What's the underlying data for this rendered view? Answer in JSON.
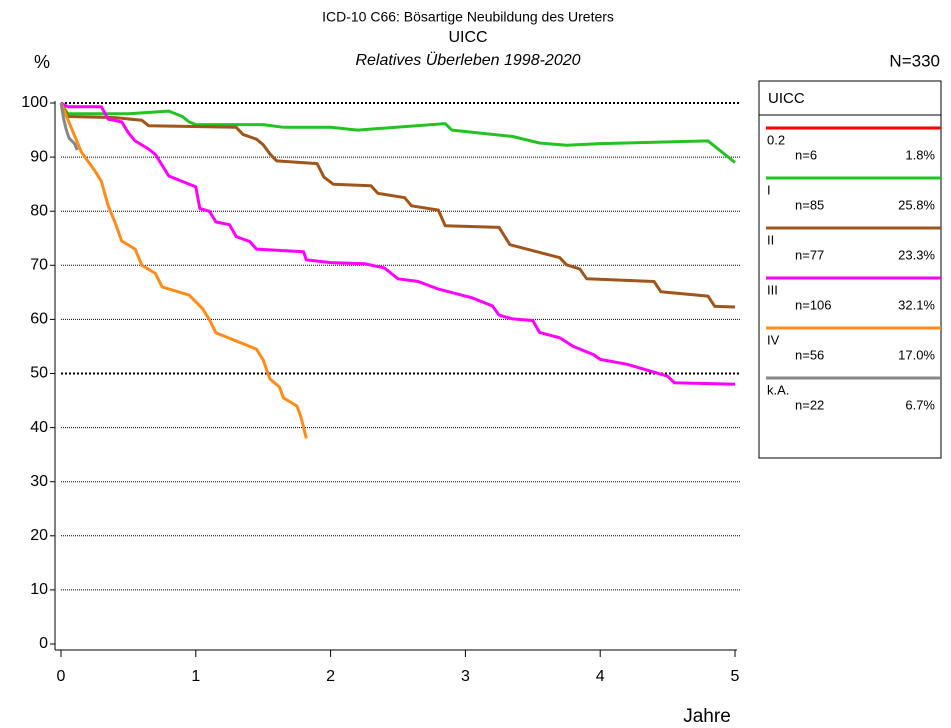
{
  "chart_data": {
    "type": "line",
    "title": "ICD-10 C66: Bösartige Neubildung des Ureters",
    "subtitle": "UICC",
    "caption": "Relatives Überleben 1998-2020",
    "total_label": "N=330",
    "ylabel": "%",
    "xlabel": "Jahre",
    "legend_title": "UICC",
    "xlim": [
      0,
      5
    ],
    "xticks": [
      0,
      1,
      2,
      3,
      4,
      5
    ],
    "ylim": [
      0,
      100
    ],
    "yticks": [
      0,
      10,
      20,
      30,
      40,
      50,
      60,
      70,
      80,
      90,
      100
    ],
    "grid": true,
    "legend_position": "right",
    "series": [
      {
        "name": "0.2",
        "color": "#ff0000",
        "n_label": "n=6",
        "share_label": "1.8%",
        "x": [],
        "values": []
      },
      {
        "name": "I",
        "color": "#22c322",
        "n_label": "n=85",
        "share_label": "25.8%",
        "x": [
          0,
          0.05,
          0.5,
          0.8,
          0.9,
          0.95,
          1.0,
          1.5,
          1.65,
          2.0,
          2.2,
          2.85,
          2.9,
          3.35,
          3.55,
          3.75,
          4.0,
          4.8,
          5.0
        ],
        "values": [
          100,
          98,
          98,
          98.5,
          97.5,
          96.5,
          96,
          96,
          95.5,
          95.5,
          95,
          96.2,
          95,
          93.8,
          92.6,
          92.2,
          92.5,
          93,
          89
        ]
      },
      {
        "name": "II",
        "color": "#a0561a",
        "n_label": "n=77",
        "share_label": "23.3%",
        "x": [
          0,
          0.05,
          0.4,
          0.6,
          0.65,
          1.3,
          1.35,
          1.45,
          1.5,
          1.55,
          1.6,
          1.9,
          1.95,
          2.02,
          2.3,
          2.35,
          2.55,
          2.6,
          2.8,
          2.85,
          3.25,
          3.33,
          3.7,
          3.75,
          3.85,
          3.9,
          4.4,
          4.45,
          4.8,
          4.85,
          5.0
        ],
        "values": [
          100,
          97.5,
          97.3,
          96.8,
          95.8,
          95.5,
          94.2,
          93.3,
          92.3,
          90.6,
          89.3,
          88.8,
          86.3,
          85,
          84.7,
          83.3,
          82.5,
          81,
          80.2,
          77.3,
          77,
          73.8,
          71.4,
          70.1,
          69.3,
          67.5,
          67,
          65.1,
          64.3,
          62.4,
          62.3
        ]
      },
      {
        "name": "III",
        "color": "#ff00ff",
        "n_label": "n=106",
        "share_label": "32.1%",
        "x": [
          0,
          0.05,
          0.3,
          0.35,
          0.45,
          0.5,
          0.55,
          0.65,
          0.7,
          0.8,
          1.0,
          1.03,
          1.1,
          1.15,
          1.25,
          1.3,
          1.4,
          1.45,
          1.8,
          1.82,
          2.0,
          2.25,
          2.4,
          2.5,
          2.65,
          2.8,
          3.05,
          3.2,
          3.25,
          3.35,
          3.5,
          3.55,
          3.7,
          3.8,
          3.95,
          4.0,
          4.2,
          4.5,
          4.55,
          5.0
        ],
        "values": [
          100,
          99.3,
          99.3,
          97,
          96.5,
          94.5,
          93,
          91.5,
          90.5,
          86.5,
          84.5,
          80.5,
          80,
          78,
          77.5,
          75.3,
          74.4,
          73,
          72.5,
          71,
          70.5,
          70.3,
          69.5,
          67.5,
          67,
          65.6,
          64,
          62.5,
          60.8,
          60.1,
          59.8,
          57.6,
          56.6,
          55,
          53.5,
          52.6,
          51.7,
          49.5,
          48.3,
          48
        ]
      },
      {
        "name": "IV",
        "color": "#ff8c1a",
        "n_label": "n=56",
        "share_label": "17.0%",
        "x": [
          0,
          0.05,
          0.1,
          0.15,
          0.25,
          0.3,
          0.35,
          0.4,
          0.45,
          0.55,
          0.6,
          0.7,
          0.75,
          0.95,
          1.05,
          1.1,
          1.15,
          1.35,
          1.45,
          1.5,
          1.55,
          1.62,
          1.65,
          1.75,
          1.78,
          1.82
        ],
        "values": [
          100,
          97,
          94,
          91,
          87.5,
          85.5,
          81,
          78,
          74.5,
          73,
          70,
          68.5,
          66,
          64.5,
          62,
          60,
          57.5,
          55.5,
          54.5,
          52.5,
          49,
          47.5,
          45.5,
          44,
          42,
          38
        ]
      },
      {
        "name": "k.A.",
        "color": "#888888",
        "n_label": "n=22",
        "share_label": "6.7%",
        "x": [
          0,
          0.02,
          0.04,
          0.06,
          0.1,
          0.12
        ],
        "values": [
          100,
          97,
          95,
          93.5,
          92.5,
          91.3
        ]
      }
    ]
  }
}
